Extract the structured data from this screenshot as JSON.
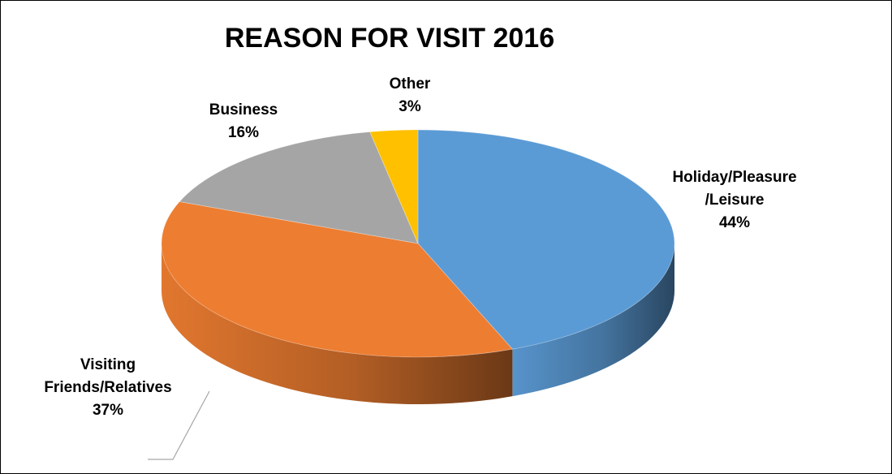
{
  "chart_data": {
    "type": "pie",
    "title": "REASON FOR VISIT 2016",
    "slices": [
      {
        "label_lines": [
          "Holiday/Pleasure",
          "/Leisure"
        ],
        "value": 44,
        "value_label": "44%",
        "color": "#5B9BD5"
      },
      {
        "label_lines": [
          "Visiting",
          "Friends/Relatives"
        ],
        "value": 37,
        "value_label": "37%",
        "color": "#ED7D31"
      },
      {
        "label_lines": [
          "Business"
        ],
        "value": 16,
        "value_label": "16%",
        "color": "#A5A5A5"
      },
      {
        "label_lines": [
          "Other"
        ],
        "value": 3,
        "value_label": "3%",
        "color": "#FFC000"
      }
    ],
    "style": "3d",
    "legend": "none"
  }
}
